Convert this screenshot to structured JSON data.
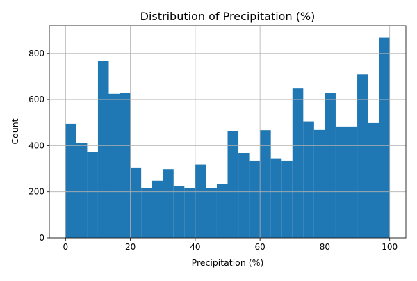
{
  "chart_data": {
    "type": "bar",
    "title": "Distribution of Precipitation (%)",
    "xlabel": "Precipitation (%)",
    "ylabel": "Count",
    "xlim": [
      -5,
      105
    ],
    "ylim": [
      0,
      920
    ],
    "xticks": [
      0,
      20,
      40,
      60,
      80,
      100
    ],
    "yticks": [
      0,
      200,
      400,
      600,
      800
    ],
    "grid": true,
    "bar_color": "#1f77b4",
    "bin_edges": [
      0,
      3.333,
      6.667,
      10,
      13.333,
      16.667,
      20,
      23.333,
      26.667,
      30,
      33.333,
      36.667,
      40,
      43.333,
      46.667,
      50,
      53.333,
      56.667,
      60,
      63.333,
      66.667,
      70,
      73.333,
      76.667,
      80,
      83.333,
      86.667,
      90,
      93.333,
      96.667,
      100
    ],
    "values": [
      495,
      413,
      374,
      768,
      625,
      630,
      305,
      215,
      248,
      298,
      224,
      215,
      318,
      215,
      235,
      463,
      368,
      335,
      467,
      345,
      335,
      648,
      505,
      468,
      628,
      483,
      483,
      708,
      498,
      870
    ]
  }
}
